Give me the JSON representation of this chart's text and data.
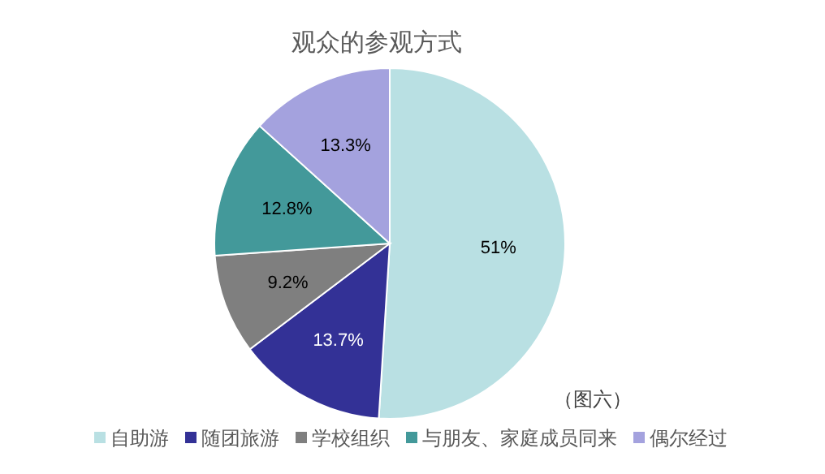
{
  "chart_data": {
    "type": "pie",
    "title": "观众的参观方式",
    "categories": [
      "自助游",
      "随团旅游",
      "学校组织",
      "与朋友、家庭成员同来",
      "偶尔经过"
    ],
    "values": [
      51,
      13.7,
      9.2,
      12.8,
      13.3
    ],
    "colors": [
      "#b9e0e3",
      "#333196",
      "#7f7f7f",
      "#43999a",
      "#a4a2de"
    ],
    "value_labels": [
      "51%",
      "13.7%",
      "9.2%",
      "12.8%",
      "13.3%"
    ],
    "legend": "bottom",
    "annotations": [
      "（图六）"
    ]
  }
}
